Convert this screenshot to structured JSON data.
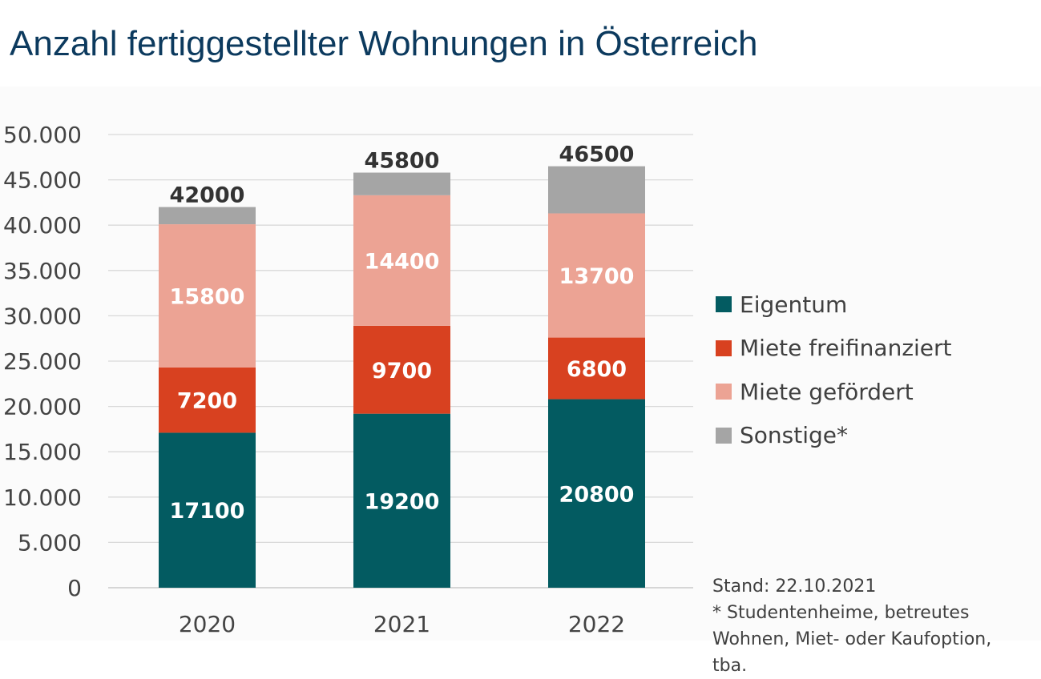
{
  "title": "Anzahl fertiggestellter Wohnungen in Österreich",
  "chart_data": {
    "type": "bar",
    "stacked": true,
    "categories": [
      "2020",
      "2021",
      "2022"
    ],
    "series": [
      {
        "name": "Eigentum",
        "color": "#035b61",
        "values": [
          17100,
          19200,
          20800
        ]
      },
      {
        "name": "Miete freifinanziert",
        "color": "#d84120",
        "values": [
          7200,
          9700,
          6800
        ]
      },
      {
        "name": "Miete gefördert",
        "color": "#eca394",
        "values": [
          15800,
          14400,
          13700
        ]
      },
      {
        "name": "Sonstige*",
        "color": "#a5a5a5",
        "values": [
          1900,
          2500,
          5200
        ]
      }
    ],
    "totals": [
      42000,
      45800,
      46500
    ],
    "ylim": [
      0,
      50000
    ],
    "yticks": [
      0,
      5000,
      10000,
      15000,
      20000,
      25000,
      30000,
      35000,
      40000,
      45000,
      50000
    ],
    "ytick_labels": [
      "0",
      "5.000",
      "10.000",
      "15.000",
      "20.000",
      "25.000",
      "30.000",
      "35.000",
      "40.000",
      "45.000",
      "50.000"
    ],
    "grid": true,
    "legend_position": "right",
    "xlabel": "",
    "ylabel": ""
  },
  "notes": [
    "Stand: 22.10.2021",
    "* Studentenheime, betreutes",
    "Wohnen, Miet- oder Kaufoption,",
    "tba."
  ]
}
